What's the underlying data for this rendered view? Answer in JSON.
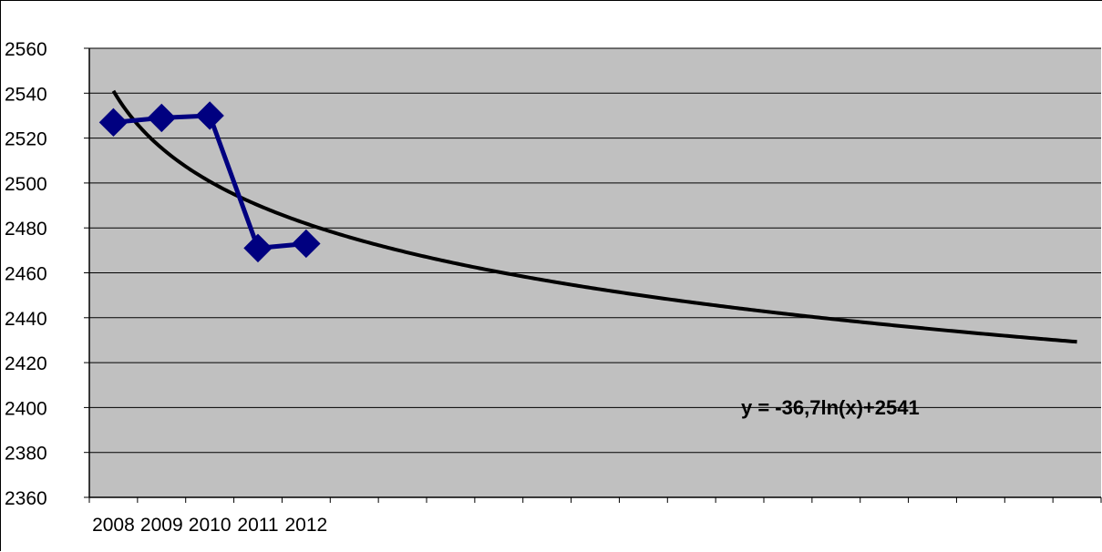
{
  "chart_data": {
    "type": "line",
    "title": "",
    "xlabel": "",
    "ylabel": "",
    "categories": [
      "2008",
      "2009",
      "2010",
      "2011",
      "2012"
    ],
    "x_slots_total": 21,
    "series": [
      {
        "values": [
          2527,
          2529,
          2530,
          2471,
          2473
        ],
        "color": "#000080",
        "marker": "diamond"
      }
    ],
    "trendline": {
      "type": "logarithmic",
      "equation": "y = -36,7ln(x)+2541",
      "coefficient": -36.7,
      "intercept": 2541,
      "x_range": [
        1,
        21
      ],
      "color": "#000000"
    },
    "ylim": [
      2360,
      2560
    ],
    "y_tick_step": 20,
    "y_ticks": [
      "2360",
      "2380",
      "2400",
      "2420",
      "2440",
      "2460",
      "2480",
      "2500",
      "2520",
      "2540",
      "2560"
    ],
    "grid": true,
    "plot_background": "#c0c0c0",
    "legend": "none"
  }
}
